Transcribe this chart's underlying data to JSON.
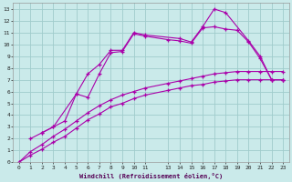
{
  "xlabel": "Windchill (Refroidissement éolien,°C)",
  "background_color": "#caeaea",
  "grid_color": "#a0cccc",
  "line_color": "#aa00aa",
  "xlim": [
    -0.5,
    23.5
  ],
  "ylim": [
    0,
    13.5
  ],
  "xticks": [
    0,
    1,
    2,
    3,
    4,
    5,
    6,
    7,
    8,
    9,
    10,
    11,
    13,
    14,
    15,
    16,
    17,
    18,
    19,
    20,
    21,
    22,
    23
  ],
  "yticks": [
    0,
    1,
    2,
    3,
    4,
    5,
    6,
    7,
    8,
    9,
    10,
    11,
    12,
    13
  ],
  "s1_x": [
    1,
    2,
    3,
    5,
    6,
    7,
    8,
    9,
    10,
    11,
    14,
    15,
    16,
    17,
    18,
    20,
    21,
    22,
    23
  ],
  "s1_y": [
    2.0,
    2.5,
    3.0,
    5.8,
    7.5,
    8.3,
    9.5,
    9.5,
    11.0,
    10.8,
    10.5,
    10.2,
    11.5,
    13.0,
    12.7,
    10.3,
    9.0,
    7.0,
    7.0
  ],
  "s2_x": [
    0,
    1,
    2,
    3,
    4,
    5,
    6,
    7,
    8,
    9,
    10,
    11,
    13,
    14,
    15,
    16,
    17,
    18,
    19,
    20,
    21,
    22,
    23
  ],
  "s2_y": [
    0,
    0.9,
    1.5,
    2.2,
    2.8,
    3.5,
    4.2,
    4.8,
    5.3,
    5.7,
    6.0,
    6.3,
    6.7,
    6.9,
    7.1,
    7.3,
    7.5,
    7.6,
    7.7,
    7.7,
    7.7,
    7.7,
    7.7
  ],
  "s3_x": [
    0,
    1,
    2,
    3,
    4,
    5,
    6,
    7,
    8,
    9,
    10,
    11,
    13,
    14,
    15,
    16,
    17,
    18,
    19,
    20,
    21,
    22,
    23
  ],
  "s3_y": [
    0,
    0.6,
    1.1,
    1.7,
    2.2,
    2.9,
    3.6,
    4.1,
    4.7,
    5.0,
    5.4,
    5.7,
    6.1,
    6.3,
    6.5,
    6.6,
    6.8,
    6.9,
    7.0,
    7.0,
    7.0,
    7.0,
    7.0
  ],
  "s4_x": [
    2,
    3,
    4,
    5,
    6,
    7,
    8,
    9,
    10,
    11,
    13,
    14,
    15,
    16,
    17,
    18,
    19,
    20,
    21,
    22,
    23
  ],
  "s4_y": [
    2.5,
    3.0,
    3.5,
    5.8,
    5.5,
    7.5,
    9.3,
    9.4,
    10.9,
    10.7,
    10.4,
    10.3,
    10.1,
    11.4,
    11.5,
    11.3,
    11.2,
    10.2,
    8.8,
    7.0,
    7.0
  ]
}
